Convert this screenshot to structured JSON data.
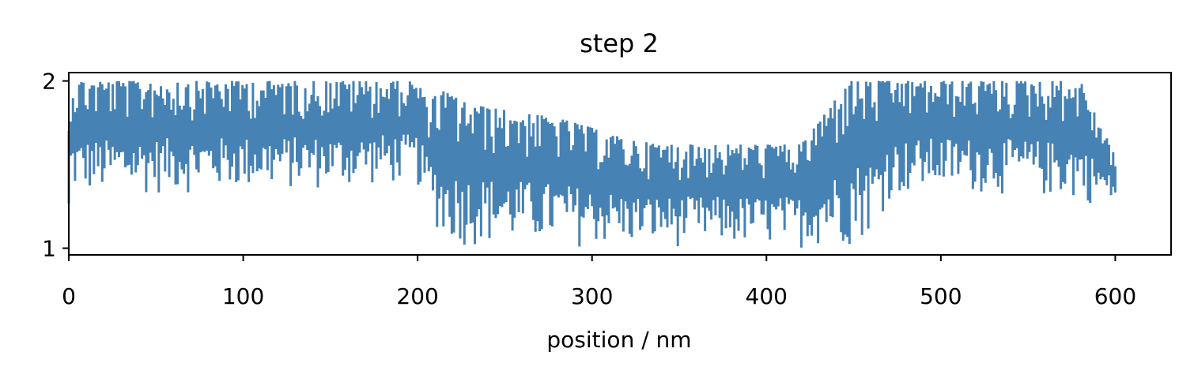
{
  "chart_data": {
    "type": "line",
    "title": "step 2",
    "xlabel": "position / nm",
    "ylabel": "",
    "xlim": [
      0,
      632
    ],
    "ylim": [
      0.96,
      2.05
    ],
    "xticks": [
      0,
      100,
      200,
      300,
      400,
      500,
      600
    ],
    "yticks": [
      1,
      2
    ],
    "xtick_labels": [
      "0",
      "100",
      "200",
      "300",
      "400",
      "500",
      "600"
    ],
    "ytick_labels": [
      "1",
      "2"
    ],
    "grid": false,
    "legend": "none",
    "series": [
      {
        "name": "",
        "color": "#4682b4",
        "envelope": [
          {
            "x": 0,
            "low": 1.0,
            "high": 1.72
          },
          {
            "x": 1,
            "low": 1.3,
            "high": 2.0
          },
          {
            "x": 20,
            "low": 1.3,
            "high": 2.0
          },
          {
            "x": 60,
            "low": 1.32,
            "high": 2.0
          },
          {
            "x": 100,
            "low": 1.33,
            "high": 2.0
          },
          {
            "x": 150,
            "low": 1.34,
            "high": 2.0
          },
          {
            "x": 190,
            "low": 1.37,
            "high": 2.0
          },
          {
            "x": 200,
            "low": 1.36,
            "high": 2.0
          },
          {
            "x": 205,
            "low": 1.25,
            "high": 1.88
          },
          {
            "x": 215,
            "low": 1.0,
            "high": 1.94
          },
          {
            "x": 230,
            "low": 1.0,
            "high": 1.86
          },
          {
            "x": 260,
            "low": 1.0,
            "high": 1.81
          },
          {
            "x": 280,
            "low": 1.0,
            "high": 1.78
          },
          {
            "x": 300,
            "low": 1.0,
            "high": 1.72
          },
          {
            "x": 320,
            "low": 1.0,
            "high": 1.65
          },
          {
            "x": 340,
            "low": 1.0,
            "high": 1.62
          },
          {
            "x": 380,
            "low": 1.0,
            "high": 1.62
          },
          {
            "x": 420,
            "low": 1.0,
            "high": 1.62
          },
          {
            "x": 440,
            "low": 1.0,
            "high": 1.9
          },
          {
            "x": 447,
            "low": 1.0,
            "high": 2.0
          },
          {
            "x": 462,
            "low": 1.08,
            "high": 2.0
          },
          {
            "x": 470,
            "low": 1.28,
            "high": 2.0
          },
          {
            "x": 500,
            "low": 1.33,
            "high": 2.0
          },
          {
            "x": 550,
            "low": 1.3,
            "high": 2.0
          },
          {
            "x": 580,
            "low": 1.26,
            "high": 2.0
          },
          {
            "x": 600,
            "low": 1.26,
            "high": 1.55
          }
        ]
      }
    ]
  }
}
